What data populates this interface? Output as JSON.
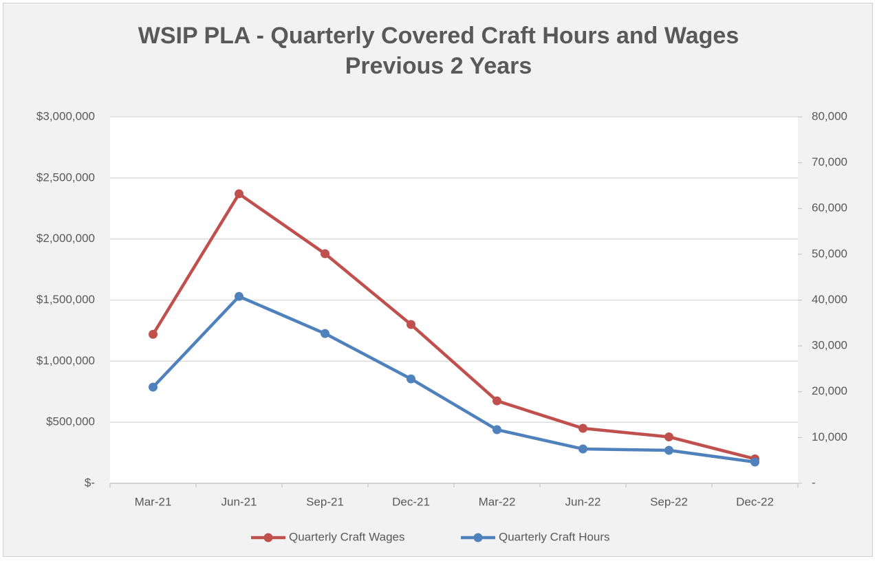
{
  "chart_data": {
    "type": "line",
    "title": "WSIP PLA - Quarterly Covered Craft Hours and Wages Previous 2 Years",
    "categories": [
      "Mar-21",
      "Jun-21",
      "Sep-21",
      "Dec-21",
      "Mar-22",
      "Jun-22",
      "Sep-22",
      "Dec-22"
    ],
    "series": [
      {
        "name": "Quarterly Craft Wages",
        "color": "#c0504d",
        "axis": "y",
        "values": [
          1220000,
          2370000,
          1880000,
          1300000,
          675000,
          450000,
          380000,
          200000
        ]
      },
      {
        "name": "Quarterly Craft Hours",
        "color": "#4f81bd",
        "axis": "y2",
        "values": [
          21000,
          40800,
          32700,
          22800,
          11700,
          7500,
          7200,
          4650
        ]
      }
    ],
    "ylim": [
      0,
      3000000
    ],
    "yticks": [
      {
        "value": 0,
        "label": "$-"
      },
      {
        "value": 500000,
        "label": "$500,000"
      },
      {
        "value": 1000000,
        "label": "$1,000,000"
      },
      {
        "value": 1500000,
        "label": "$1,500,000"
      },
      {
        "value": 2000000,
        "label": "$2,000,000"
      },
      {
        "value": 2500000,
        "label": "$2,500,000"
      },
      {
        "value": 3000000,
        "label": "$3,000,000"
      }
    ],
    "y2lim": [
      0,
      80000
    ],
    "y2ticks": [
      {
        "value": 0,
        "label": "-"
      },
      {
        "value": 10000,
        "label": "10,000"
      },
      {
        "value": 20000,
        "label": "20,000"
      },
      {
        "value": 30000,
        "label": "30,000"
      },
      {
        "value": 40000,
        "label": "40,000"
      },
      {
        "value": 50000,
        "label": "50,000"
      },
      {
        "value": 60000,
        "label": "60,000"
      },
      {
        "value": 70000,
        "label": "70,000"
      },
      {
        "value": 80000,
        "label": "80,000"
      }
    ],
    "grid": true,
    "legend": "bottom"
  }
}
